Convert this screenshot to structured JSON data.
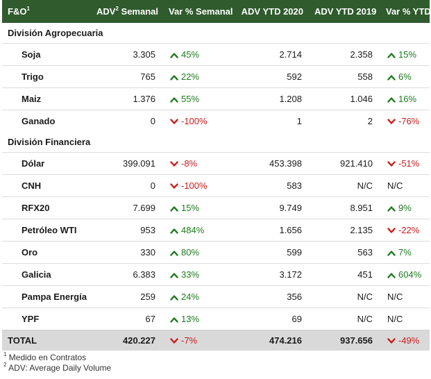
{
  "header": {
    "col1": "F&O",
    "col1_sup": "1",
    "col2": "ADV",
    "col2_sup": "2",
    "col2_rest": " Semanal",
    "col3": "Var % Semanal",
    "col4": "ADV YTD 2020",
    "col5": "ADV YTD 2019",
    "col6": "Var % YTD"
  },
  "sections": [
    {
      "title": "División Agropecuaria",
      "rows": [
        {
          "name": "Soja",
          "adv": "3.305",
          "var_sem": "45%",
          "dir_sem": "up",
          "ytd2020": "2.714",
          "ytd2019": "2.358",
          "var_ytd": "15%",
          "dir_ytd": "up"
        },
        {
          "name": "Trigo",
          "adv": "765",
          "var_sem": "22%",
          "dir_sem": "up",
          "ytd2020": "592",
          "ytd2019": "558",
          "var_ytd": "6%",
          "dir_ytd": "up"
        },
        {
          "name": "Maiz",
          "adv": "1.376",
          "var_sem": "55%",
          "dir_sem": "up",
          "ytd2020": "1.208",
          "ytd2019": "1.046",
          "var_ytd": "16%",
          "dir_ytd": "up"
        },
        {
          "name": "Ganado",
          "adv": "0",
          "var_sem": "-100%",
          "dir_sem": "down",
          "ytd2020": "1",
          "ytd2019": "2",
          "var_ytd": "-76%",
          "dir_ytd": "down"
        }
      ]
    },
    {
      "title": "División Financiera",
      "rows": [
        {
          "name": "Dólar",
          "adv": "399.091",
          "var_sem": "-8%",
          "dir_sem": "down",
          "ytd2020": "453.398",
          "ytd2019": "921.410",
          "var_ytd": "-51%",
          "dir_ytd": "down"
        },
        {
          "name": "CNH",
          "adv": "0",
          "var_sem": "-100%",
          "dir_sem": "down",
          "ytd2020": "583",
          "ytd2019": "N/C",
          "var_ytd": "N/C",
          "dir_ytd": "none"
        },
        {
          "name": "RFX20",
          "adv": "7.699",
          "var_sem": "15%",
          "dir_sem": "up",
          "ytd2020": "9.749",
          "ytd2019": "8.951",
          "var_ytd": "9%",
          "dir_ytd": "up"
        },
        {
          "name": "Petróleo WTI",
          "adv": "953",
          "var_sem": "484%",
          "dir_sem": "up",
          "ytd2020": "1.656",
          "ytd2019": "2.135",
          "var_ytd": "-22%",
          "dir_ytd": "down"
        },
        {
          "name": "Oro",
          "adv": "330",
          "var_sem": "80%",
          "dir_sem": "up",
          "ytd2020": "599",
          "ytd2019": "563",
          "var_ytd": "7%",
          "dir_ytd": "up"
        },
        {
          "name": "Galicia",
          "adv": "6.383",
          "var_sem": "33%",
          "dir_sem": "up",
          "ytd2020": "3.172",
          "ytd2019": "451",
          "var_ytd": "604%",
          "dir_ytd": "up"
        },
        {
          "name": "Pampa Energía",
          "adv": "259",
          "var_sem": "24%",
          "dir_sem": "up",
          "ytd2020": "356",
          "ytd2019": "N/C",
          "var_ytd": "N/C",
          "dir_ytd": "none"
        },
        {
          "name": "YPF",
          "adv": "67",
          "var_sem": "13%",
          "dir_sem": "up",
          "ytd2020": "69",
          "ytd2019": "N/C",
          "var_ytd": "N/C",
          "dir_ytd": "none"
        }
      ]
    }
  ],
  "total": {
    "name": "TOTAL",
    "adv": "420.227",
    "var_sem": "-7%",
    "dir_sem": "down",
    "ytd2020": "474.216",
    "ytd2019": "937.656",
    "var_ytd": "-49%",
    "dir_ytd": "down"
  },
  "footnotes": [
    {
      "sup": "1",
      "text": " Medido en Contratos"
    },
    {
      "sup": "2",
      "text": " ADV: Average Daily Volume"
    }
  ],
  "colors": {
    "header_bg": "#2f5b2d",
    "up": "#1c7a1c",
    "down": "#cc1a1a",
    "total_bg": "#d9d9d9"
  }
}
